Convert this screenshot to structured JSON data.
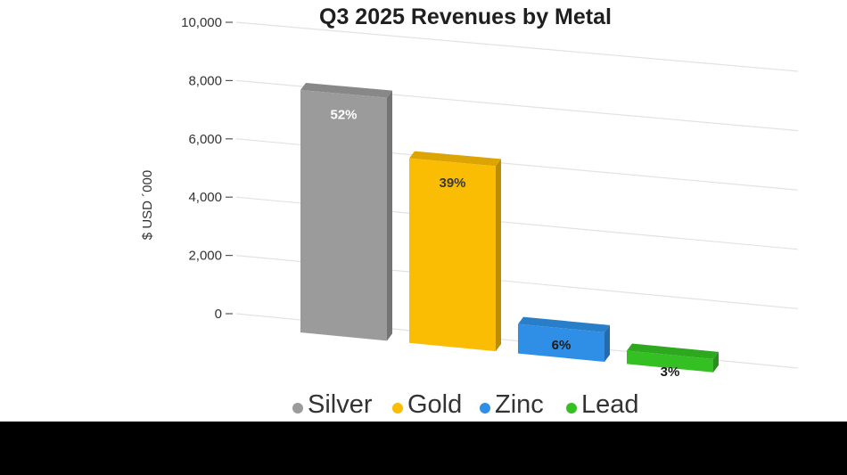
{
  "chart_data": {
    "type": "bar",
    "title": "Q3 2025 Revenues by Metal",
    "ylabel": "$ USD ´000",
    "xlabel": "",
    "ylim": [
      0,
      10000
    ],
    "yticks": [
      0,
      2000,
      4000,
      6000,
      8000,
      10000
    ],
    "ytick_labels": [
      "0",
      "2,000",
      "4,000",
      "6,000",
      "8,000",
      "10,000"
    ],
    "categories": [
      "Silver",
      "Gold",
      "Zinc",
      "Lead"
    ],
    "values": [
      8300,
      6300,
      1000,
      450
    ],
    "data_labels": [
      "52%",
      "39%",
      "6%",
      "3%"
    ],
    "colors": [
      "#9b9b9b",
      "#fbbc04",
      "#2f8fe6",
      "#34c023"
    ],
    "label_colors": [
      "#ffffff",
      "#3a3a3a",
      "#1a1a1a",
      "#1a1a1a"
    ],
    "grid": true,
    "legend": "bottom",
    "style": "3d"
  }
}
